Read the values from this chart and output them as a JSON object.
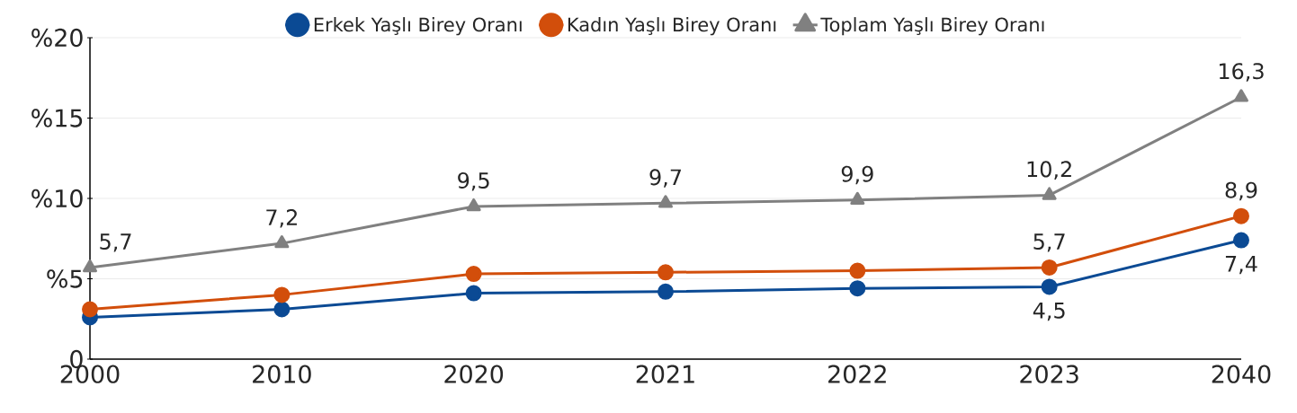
{
  "chart_data": {
    "type": "line",
    "categories": [
      "2000",
      "2010",
      "2020",
      "2021",
      "2022",
      "2023",
      "2040"
    ],
    "series": [
      {
        "name": "Erkek Yaşlı Birey Oranı",
        "color": "#0b4a94",
        "marker": "circle",
        "values": [
          2.6,
          3.1,
          4.1,
          4.2,
          4.4,
          4.5,
          7.4
        ],
        "value_labels": [
          null,
          null,
          null,
          null,
          null,
          "4,5",
          "7,4"
        ]
      },
      {
        "name": "Kadın Yaşlı Birey Oranı",
        "color": "#d24e0b",
        "marker": "circle",
        "values": [
          3.1,
          4.0,
          5.3,
          5.4,
          5.5,
          5.7,
          8.9
        ],
        "value_labels": [
          null,
          null,
          null,
          null,
          null,
          "5,7",
          "8,9"
        ]
      },
      {
        "name": "Toplam Yaşlı Birey Oranı",
        "color": "#808080",
        "marker": "triangle",
        "values": [
          5.7,
          7.2,
          9.5,
          9.7,
          9.9,
          10.2,
          16.3
        ],
        "value_labels": [
          "5,7",
          "7,2",
          "9,5",
          "9,7",
          "9,9",
          "10,2",
          "16,3"
        ]
      }
    ],
    "ylim": [
      0,
      20
    ],
    "yticks": [
      0,
      {
        "value": 5,
        "label": "%5"
      },
      {
        "value": 10,
        "label": "%10"
      },
      {
        "value": 15,
        "label": "%15"
      },
      {
        "value": 20,
        "label": "%20"
      }
    ],
    "grid": "y",
    "legend": "top",
    "line_style": "solid"
  }
}
